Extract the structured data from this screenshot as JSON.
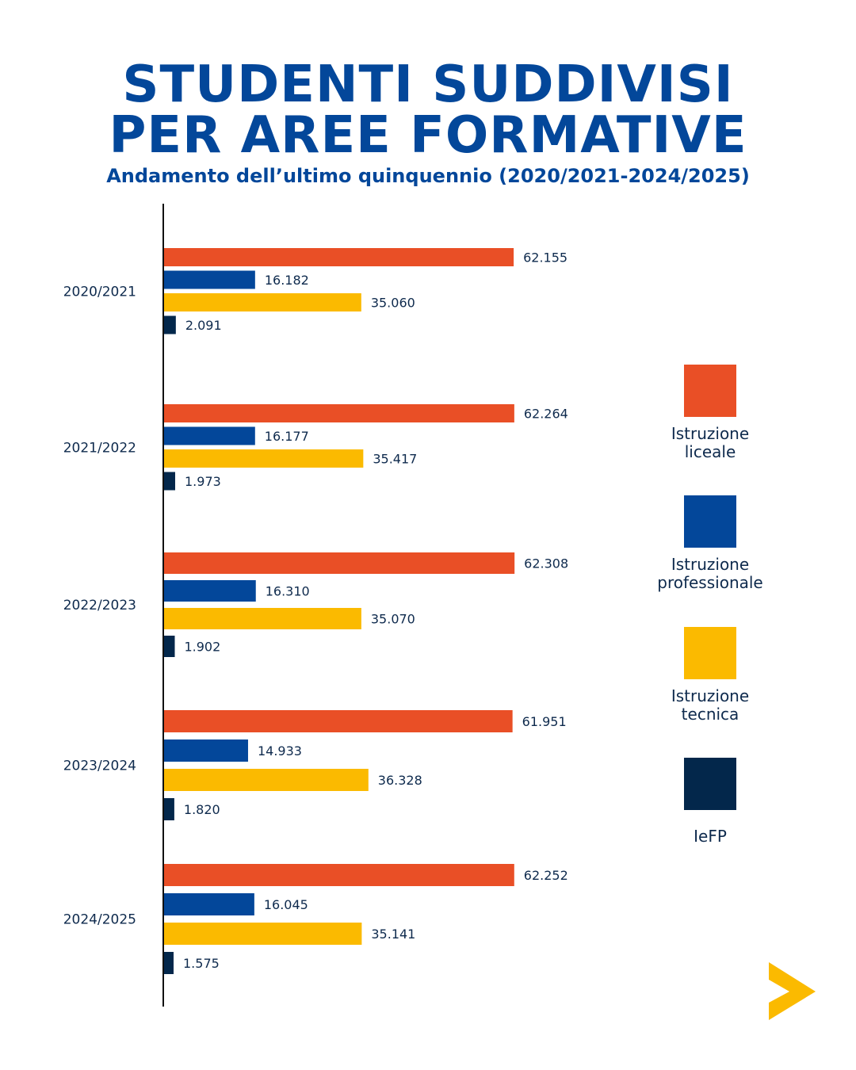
{
  "header": {
    "title_line1": "STUDENTI SUDDIVISI",
    "title_line2": "PER AREE FORMATIVE",
    "subtitle": "Andamento dell’ultimo quinquennio (2020/2021-2024/2025)"
  },
  "chart_data": {
    "type": "bar",
    "orientation": "horizontal",
    "title": "STUDENTI SUDDIVISI PER AREE FORMATIVE",
    "subtitle": "Andamento dell’ultimo quinquennio (2020/2021-2024/2025)",
    "xlabel": "",
    "ylabel": "",
    "categories": [
      "2020/2021",
      "2021/2022",
      "2022/2023",
      "2023/2024",
      "2024/2025"
    ],
    "series": [
      {
        "name": "Istruzione liceale",
        "color": "#e94f26",
        "values": [
          62155,
          62264,
          62308,
          61951,
          62252
        ],
        "labels": [
          "62.155",
          "62.264",
          "62.308",
          "61.951",
          "62.252"
        ]
      },
      {
        "name": "Istruzione professionale",
        "color": "#03479a",
        "values": [
          16182,
          16177,
          16310,
          14933,
          16045
        ],
        "labels": [
          "16.182",
          "16.177",
          "16.310",
          "14.933",
          "16.045"
        ]
      },
      {
        "name": "Istruzione tecnica",
        "color": "#fbba00",
        "values": [
          35060,
          35417,
          35070,
          36328,
          35141
        ],
        "labels": [
          "35.060",
          "35.417",
          "35.070",
          "36.328",
          "35.141"
        ]
      },
      {
        "name": "IeFP",
        "color": "#03274b",
        "values": [
          2091,
          1973,
          1902,
          1820,
          1575
        ],
        "labels": [
          "2.091",
          "1.973",
          "1.902",
          "1.820",
          "1.575"
        ]
      }
    ],
    "grid": false,
    "legend_position": "right",
    "xlim": [
      0,
      70000
    ]
  },
  "legend": [
    {
      "label": "Istruzione\nliceale",
      "color": "#e94f26"
    },
    {
      "label": "Istruzione\nprofessionale",
      "color": "#03479a"
    },
    {
      "label": "Istruzione\ntecnica",
      "color": "#fbba00"
    },
    {
      "label": "IeFP",
      "color": "#03274b"
    }
  ],
  "navigation": {
    "next_icon": "next-arrow-icon",
    "color": "#fbba00"
  }
}
